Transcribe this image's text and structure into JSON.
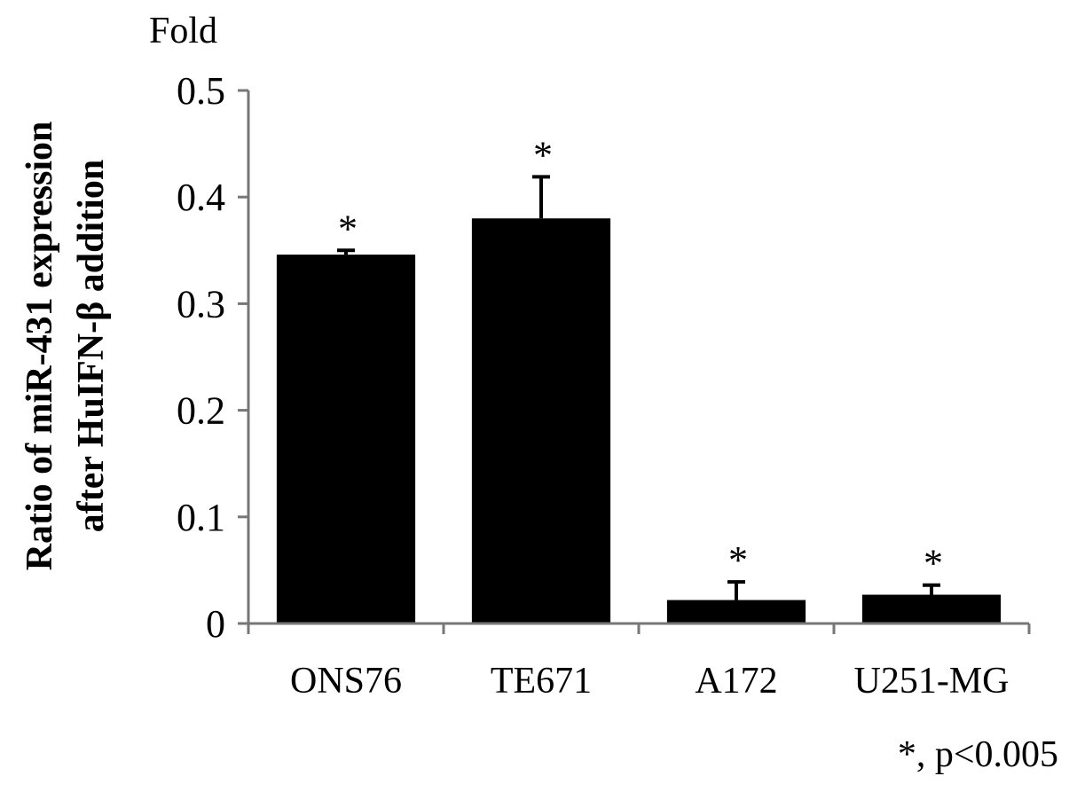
{
  "chart_data": {
    "type": "bar",
    "categories": [
      "ONS76",
      "TE671",
      "A172",
      "U251-MG"
    ],
    "series": [
      {
        "values": [
          0.346,
          0.38,
          0.022,
          0.027
        ],
        "error": [
          0.004,
          0.039,
          0.017,
          0.009
        ],
        "color": "#000000"
      }
    ],
    "significance_marks": [
      "*",
      "*",
      "*",
      "*"
    ],
    "y_unit": "Fold",
    "ylabel_lines": [
      "Ratio of miR-431 expression",
      "after HuIFN-β addition"
    ],
    "xlabel": "",
    "ylim": [
      0,
      0.5
    ],
    "yticks": [
      0,
      0.1,
      0.2,
      0.3,
      0.4,
      0.5
    ],
    "ytick_labels": [
      "0",
      "0.1",
      "0.2",
      "0.3",
      "0.4",
      "0.5"
    ],
    "grid": false,
    "legend": "none",
    "footnote": "*, p<0.005"
  }
}
